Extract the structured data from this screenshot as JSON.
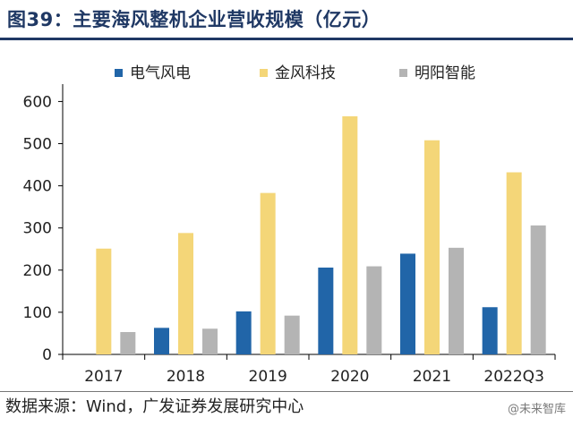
{
  "figure": {
    "title": "图39：主要海风整机企业营收规模（亿元）",
    "source": "数据来源：Wind，广发证券发展研究中心",
    "watermark": "@未来智库"
  },
  "chart_data": {
    "type": "bar",
    "categories": [
      "2017",
      "2018",
      "2019",
      "2020",
      "2021",
      "2022Q3"
    ],
    "series": [
      {
        "name": "电气风电",
        "color": "#2165a8",
        "values": [
          null,
          63,
          102,
          206,
          239,
          112
        ]
      },
      {
        "name": "金风科技",
        "color": "#f4d678",
        "values": [
          251,
          288,
          383,
          565,
          508,
          432
        ]
      },
      {
        "name": "明阳智能",
        "color": "#b4b4b4",
        "values": [
          53,
          61,
          92,
          209,
          253,
          306
        ]
      }
    ],
    "y_ticks": [
      0,
      100,
      200,
      300,
      400,
      500,
      600
    ],
    "ylim": [
      0,
      620
    ],
    "legend_position": "top",
    "grid": false
  }
}
